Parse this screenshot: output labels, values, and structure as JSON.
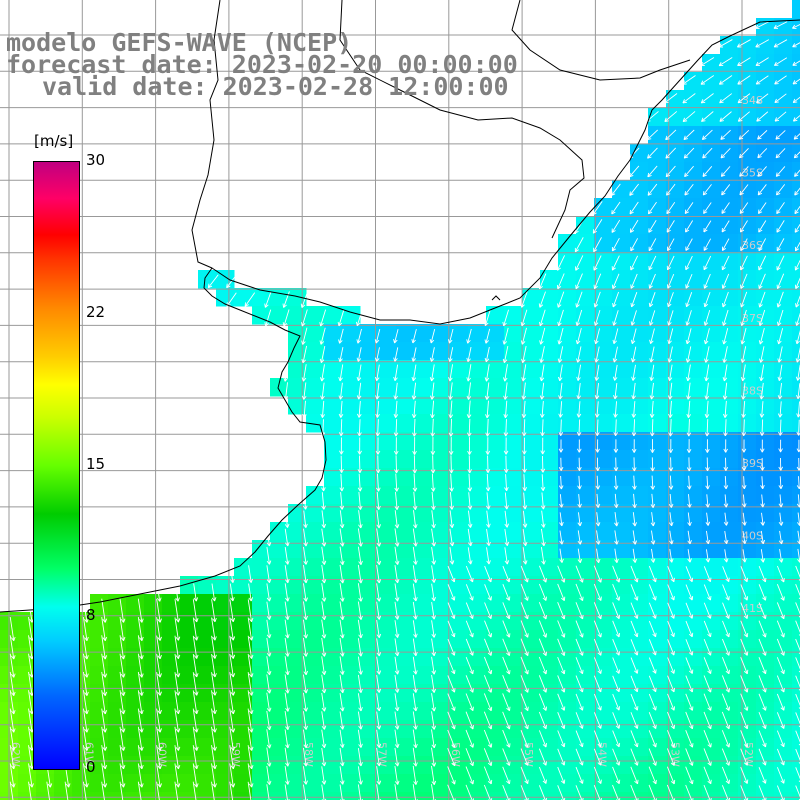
{
  "title": {
    "model": "modelo GEFS-WAVE (NCEP)",
    "forecast": "forecast date: 2023-02-20 00:00:00",
    "valid": "valid date: 2023-02-28 12:00:00"
  },
  "colorbar": {
    "unit": "[m/s]",
    "min": 0,
    "max": 30,
    "ticks": [
      {
        "label": "30",
        "value": 30
      },
      {
        "label": "22",
        "value": 22.5
      },
      {
        "label": "15",
        "value": 15
      },
      {
        "label": "8",
        "value": 7.5
      },
      {
        "label": "0",
        "value": 0
      }
    ],
    "colors": [
      "#0000ff",
      "#00ccff",
      "#00ffee",
      "#00cc00",
      "#ffff00",
      "#ff8800",
      "#ff0000",
      "#c00080"
    ]
  },
  "map": {
    "variable": "wind speed",
    "lat_labels": [
      "34S",
      "35S",
      "36S",
      "37S",
      "38S",
      "39S",
      "40S",
      "41S"
    ],
    "lon_labels": [
      "62W",
      "61W",
      "60W",
      "59W",
      "58W",
      "57W",
      "56W",
      "55W",
      "54W",
      "53W",
      "52W",
      "51W"
    ],
    "land_color": "#ffffff",
    "grid_color": "#999999",
    "arrow_color": "#ffffff"
  }
}
